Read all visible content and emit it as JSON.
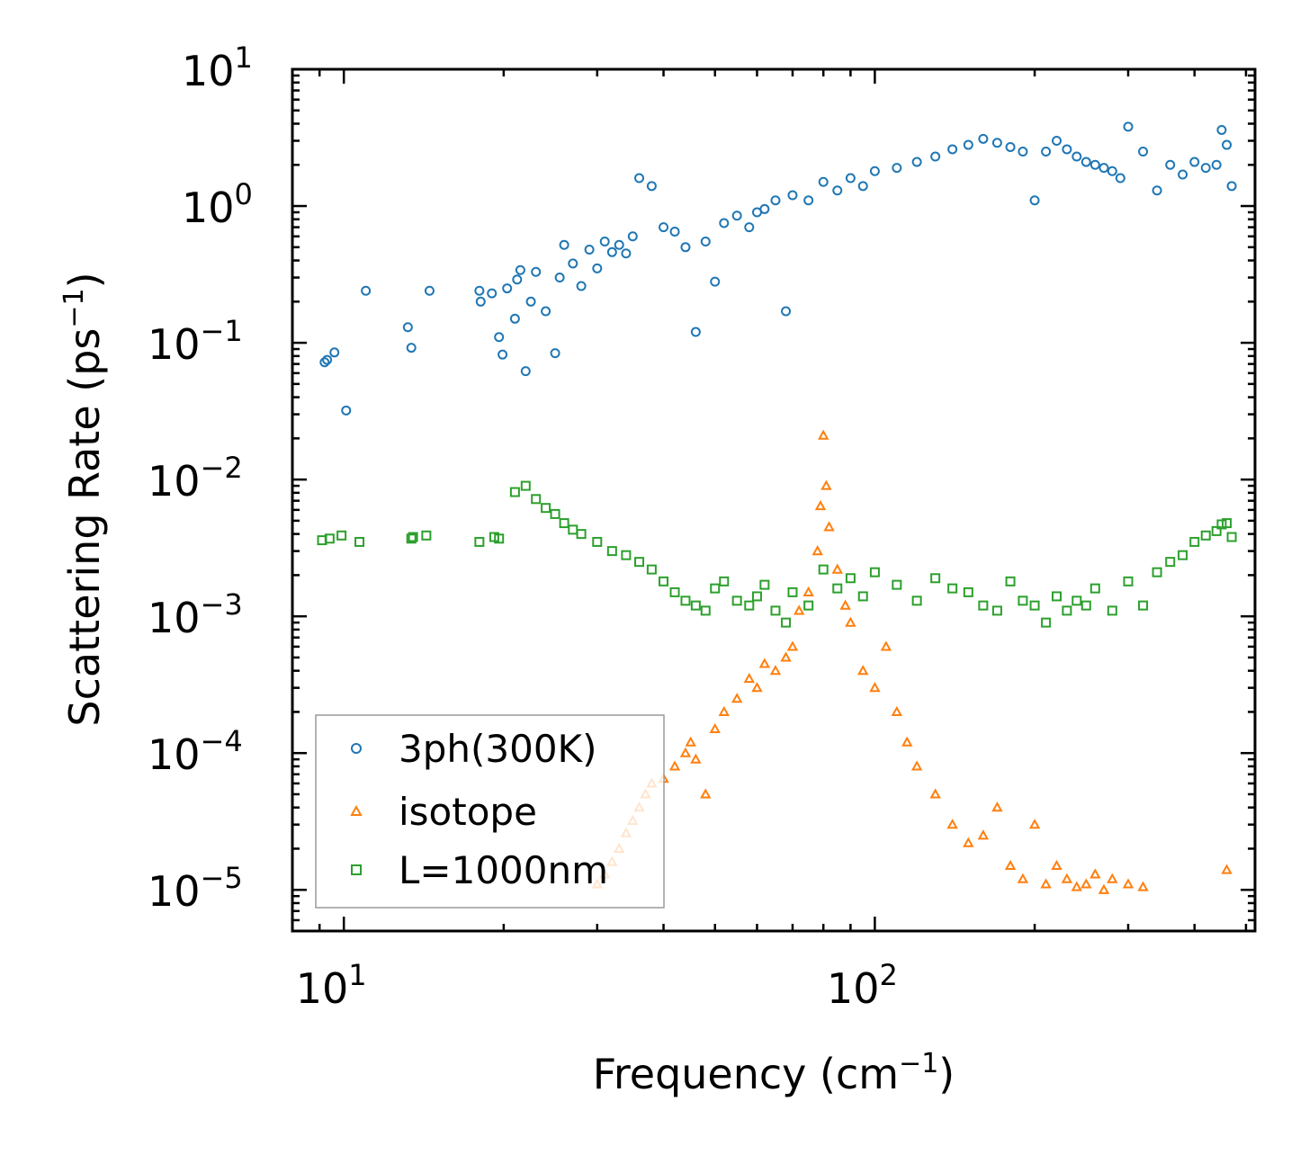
{
  "chart_data": {
    "type": "scatter",
    "xscale": "log",
    "yscale": "log",
    "xlim": [
      8,
      520
    ],
    "ylim": [
      5e-06,
      10
    ],
    "xlabel_base": "Frequency (cm",
    "xlabel_exp": "−1",
    "xlabel_close": ")",
    "ylabel_base": "Scattering Rate (ps",
    "ylabel_exp": "−1",
    "ylabel_close": ")",
    "x_ticks": [
      {
        "value": 10,
        "base": "10",
        "exp": "1"
      },
      {
        "value": 100,
        "base": "10",
        "exp": "2"
      }
    ],
    "y_ticks": [
      {
        "value": 10,
        "base": "10",
        "exp": "1"
      },
      {
        "value": 1,
        "base": "10",
        "exp": "0"
      },
      {
        "value": 0.1,
        "base": "10",
        "exp": "−1"
      },
      {
        "value": 0.01,
        "base": "10",
        "exp": "−2"
      },
      {
        "value": 0.001,
        "base": "10",
        "exp": "−3"
      },
      {
        "value": 0.0001,
        "base": "10",
        "exp": "−4"
      },
      {
        "value": 1e-05,
        "base": "10",
        "exp": "−5"
      }
    ],
    "legend_position": "lower-left",
    "series": [
      {
        "name": "3ph(300K)",
        "marker": "circle",
        "color": "#1f77b4",
        "x": [
          9.2,
          9.3,
          9.6,
          10.1,
          11,
          13.2,
          13.4,
          14.5,
          18,
          18.1,
          19,
          19.6,
          19.9,
          20.3,
          21,
          21.2,
          21.5,
          22,
          22.5,
          23,
          24,
          25,
          25.5,
          26,
          27,
          28,
          29,
          30,
          31,
          32,
          33,
          34,
          35,
          36,
          38,
          40,
          42,
          44,
          46,
          48,
          50,
          52,
          55,
          58,
          60,
          62,
          65,
          68,
          70,
          75,
          80,
          85,
          90,
          95,
          100,
          110,
          120,
          130,
          140,
          150,
          160,
          170,
          180,
          190,
          200,
          210,
          220,
          230,
          240,
          250,
          260,
          270,
          280,
          290,
          300,
          320,
          340,
          360,
          380,
          400,
          420,
          440,
          450,
          460,
          470
        ],
        "y": [
          0.072,
          0.075,
          0.085,
          0.032,
          0.24,
          0.13,
          0.092,
          0.24,
          0.24,
          0.2,
          0.23,
          0.11,
          0.082,
          0.25,
          0.15,
          0.29,
          0.34,
          0.062,
          0.2,
          0.33,
          0.17,
          0.084,
          0.3,
          0.52,
          0.38,
          0.26,
          0.48,
          0.35,
          0.55,
          0.46,
          0.52,
          0.45,
          0.6,
          1.6,
          1.4,
          0.7,
          0.65,
          0.5,
          0.12,
          0.55,
          0.28,
          0.75,
          0.85,
          0.7,
          0.9,
          0.95,
          1.1,
          0.17,
          1.2,
          1.1,
          1.5,
          1.3,
          1.6,
          1.4,
          1.8,
          1.9,
          2.1,
          2.3,
          2.6,
          2.8,
          3.1,
          2.9,
          2.7,
          2.5,
          1.1,
          2.5,
          3.0,
          2.6,
          2.3,
          2.1,
          2.0,
          1.9,
          1.8,
          1.6,
          3.8,
          2.5,
          1.3,
          2.0,
          1.7,
          2.1,
          1.9,
          2.0,
          3.6,
          2.8,
          1.4
        ]
      },
      {
        "name": "isotope",
        "marker": "triangle",
        "color": "#ff7f0e",
        "x": [
          30,
          31,
          32,
          33,
          34,
          35,
          36,
          37,
          38,
          40,
          42,
          44,
          45,
          46,
          48,
          50,
          52,
          55,
          58,
          60,
          62,
          65,
          68,
          70,
          72,
          75,
          78,
          79,
          80,
          81,
          82,
          85,
          88,
          90,
          95,
          100,
          105,
          110,
          115,
          120,
          130,
          140,
          150,
          160,
          170,
          180,
          190,
          200,
          210,
          220,
          230,
          240,
          250,
          260,
          270,
          280,
          300,
          320,
          460
        ],
        "y": [
          1.1e-05,
          1.3e-05,
          1.6e-05,
          2e-05,
          2.6e-05,
          3.2e-05,
          4e-05,
          5e-05,
          6e-05,
          6.5e-05,
          8e-05,
          0.0001,
          0.00012,
          9e-05,
          5e-05,
          0.00015,
          0.0002,
          0.00025,
          0.00035,
          0.0003,
          0.00045,
          0.0004,
          0.0005,
          0.0006,
          0.0011,
          0.0015,
          0.003,
          0.0064,
          0.021,
          0.009,
          0.0045,
          0.0022,
          0.0012,
          0.0009,
          0.0004,
          0.0003,
          0.0006,
          0.0002,
          0.00012,
          8e-05,
          5e-05,
          3e-05,
          2.2e-05,
          2.5e-05,
          4e-05,
          1.5e-05,
          1.2e-05,
          3e-05,
          1.1e-05,
          1.5e-05,
          1.2e-05,
          1.05e-05,
          1.1e-05,
          1.3e-05,
          1e-05,
          1.2e-05,
          1.1e-05,
          1.05e-05,
          1.4e-05
        ]
      },
      {
        "name": "L=1000nm",
        "marker": "square",
        "color": "#2ca02c",
        "x": [
          9.1,
          9.4,
          9.9,
          10.7,
          13.4,
          13.5,
          14.3,
          18,
          19.2,
          19.6,
          21,
          22,
          23,
          24,
          25,
          26,
          27,
          28,
          30,
          32,
          34,
          36,
          38,
          40,
          42,
          44,
          46,
          48,
          50,
          52,
          55,
          58,
          60,
          62,
          65,
          68,
          70,
          75,
          80,
          85,
          90,
          95,
          100,
          110,
          120,
          130,
          140,
          150,
          160,
          170,
          180,
          190,
          200,
          210,
          220,
          230,
          240,
          250,
          260,
          280,
          300,
          320,
          340,
          360,
          380,
          400,
          420,
          440,
          450,
          460,
          470
        ],
        "y": [
          0.0036,
          0.0037,
          0.0039,
          0.0035,
          0.0037,
          0.0038,
          0.0039,
          0.0035,
          0.0038,
          0.0037,
          0.0081,
          0.009,
          0.0072,
          0.0062,
          0.0056,
          0.0048,
          0.0043,
          0.004,
          0.0035,
          0.003,
          0.0028,
          0.0025,
          0.0022,
          0.0018,
          0.0015,
          0.0013,
          0.0012,
          0.0011,
          0.0016,
          0.0018,
          0.0013,
          0.0012,
          0.0014,
          0.0017,
          0.0011,
          0.0009,
          0.0015,
          0.0012,
          0.0022,
          0.0016,
          0.0019,
          0.0014,
          0.0021,
          0.0017,
          0.0013,
          0.0019,
          0.0016,
          0.0015,
          0.0012,
          0.0011,
          0.0018,
          0.0013,
          0.0012,
          0.0009,
          0.0014,
          0.0011,
          0.0013,
          0.0012,
          0.0016,
          0.0011,
          0.0018,
          0.0012,
          0.0021,
          0.0025,
          0.0028,
          0.0035,
          0.0039,
          0.0042,
          0.0047,
          0.0048,
          0.0038
        ]
      }
    ]
  }
}
